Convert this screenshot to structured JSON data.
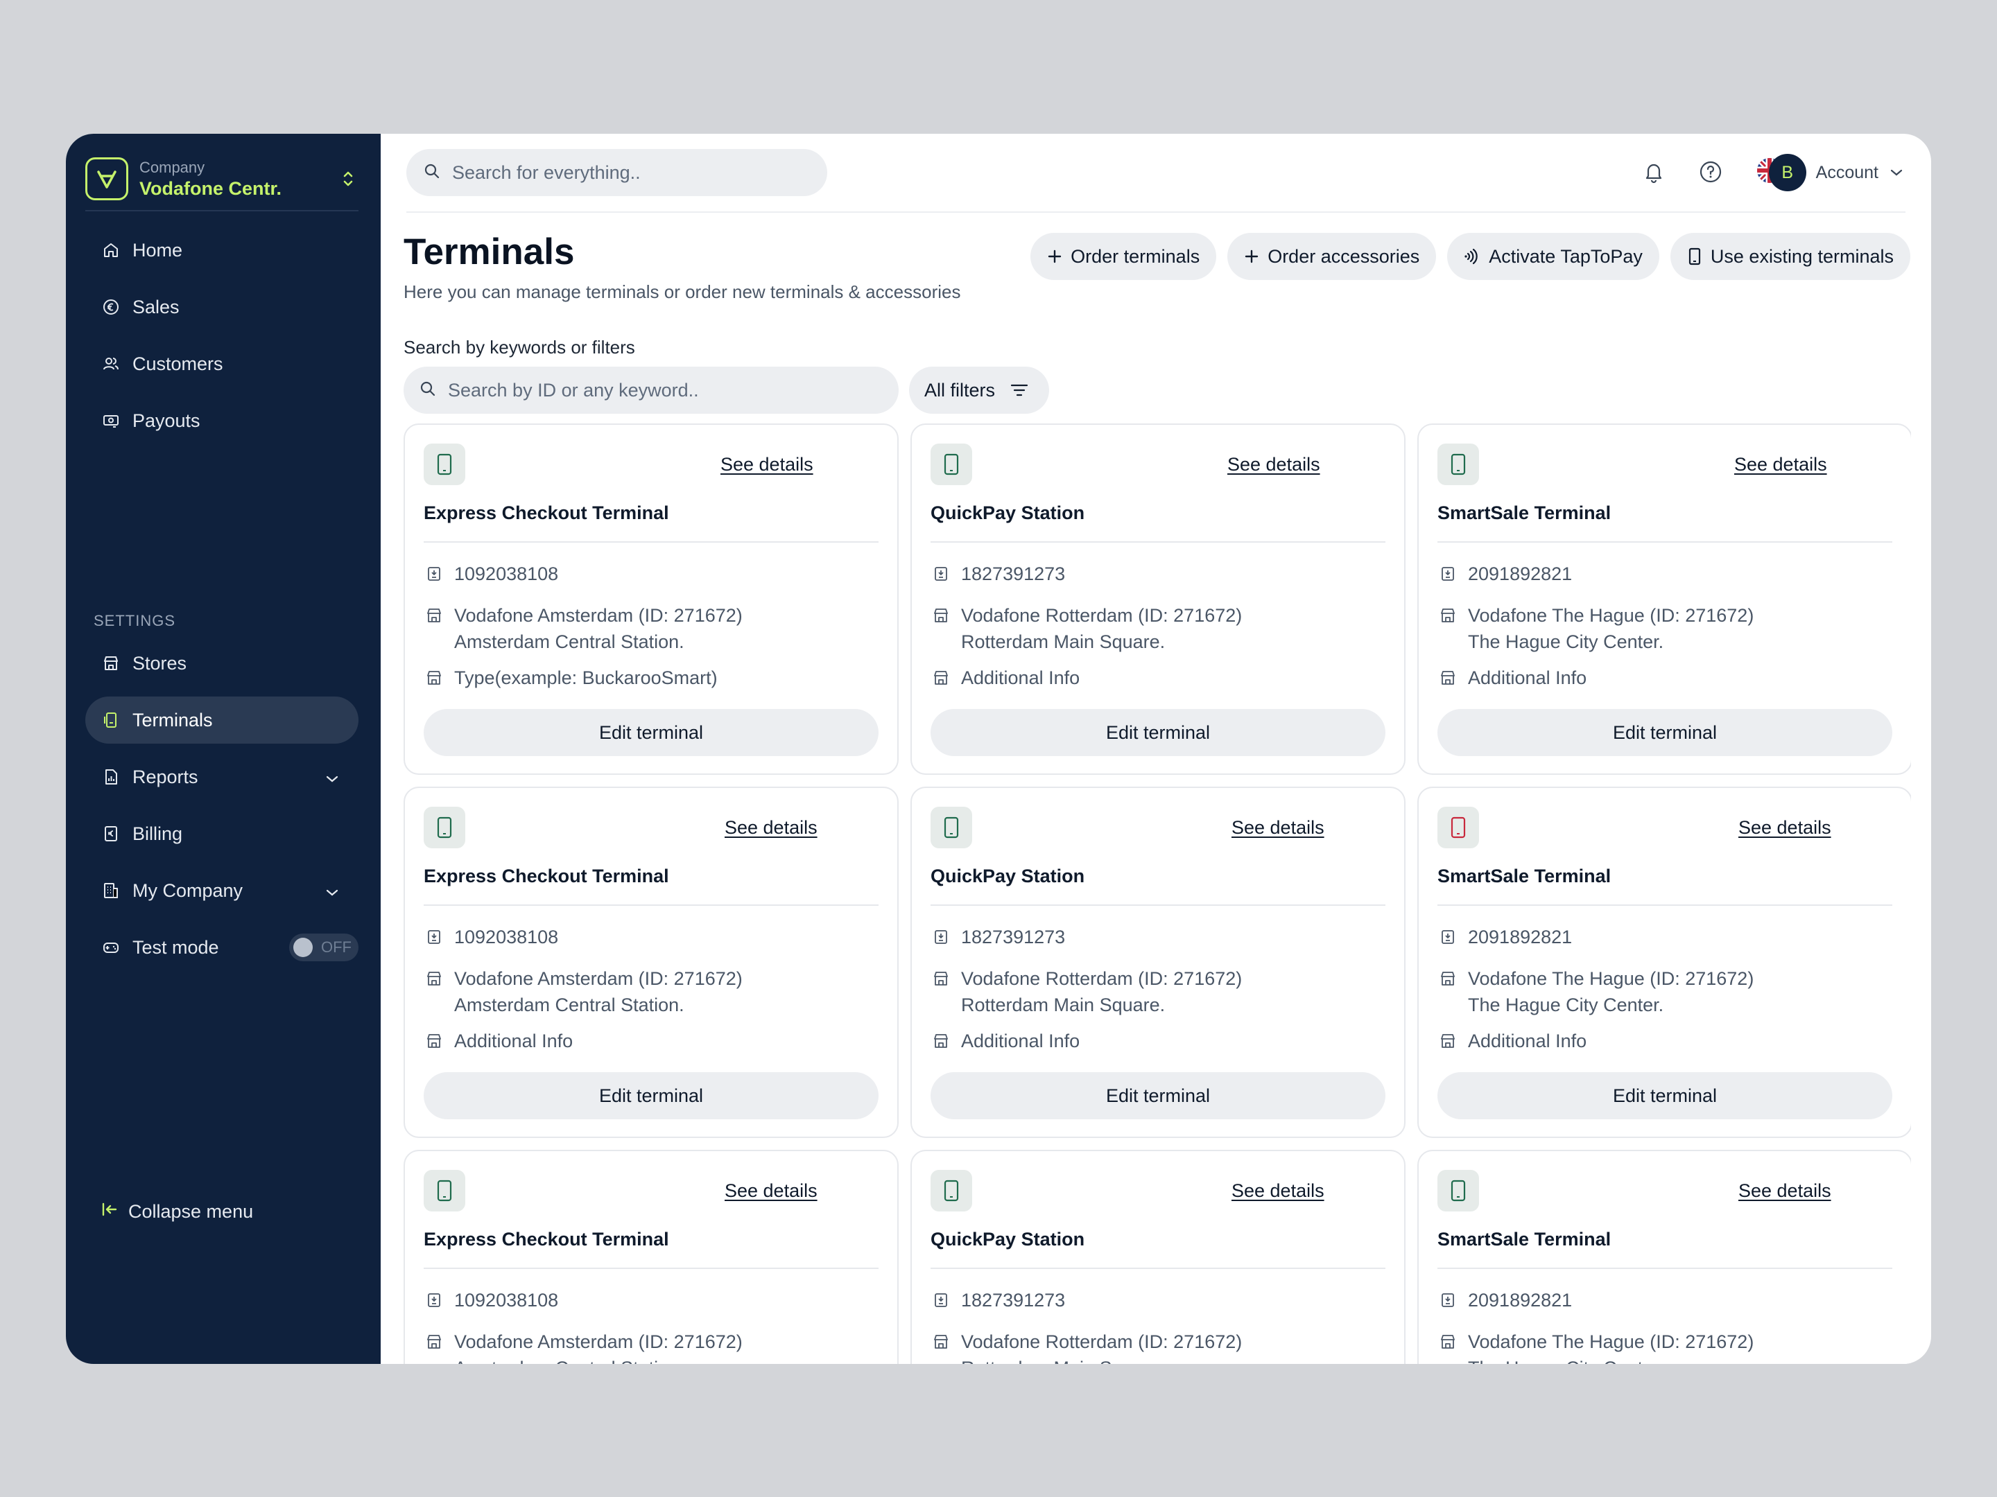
{
  "sidebar": {
    "company_label": "Company",
    "company_name": "Vodafone Centr.",
    "nav": [
      {
        "label": "Home",
        "icon": "home-icon"
      },
      {
        "label": "Sales",
        "icon": "euro-icon"
      },
      {
        "label": "Customers",
        "icon": "users-icon"
      },
      {
        "label": "Payouts",
        "icon": "payout-icon"
      }
    ],
    "settings_label": "SETTINGS",
    "settings": [
      {
        "label": "Stores",
        "icon": "store-icon"
      },
      {
        "label": "Terminals",
        "icon": "terminal-icon",
        "active": true
      },
      {
        "label": "Reports",
        "icon": "report-icon",
        "expandable": true
      },
      {
        "label": "Billing",
        "icon": "billing-icon"
      },
      {
        "label": "My Company",
        "icon": "company-icon",
        "expandable": true
      }
    ],
    "test_mode_label": "Test mode",
    "test_mode_state": "OFF",
    "collapse_label": "Collapse menu"
  },
  "topbar": {
    "search_placeholder": "Search for everything..",
    "account_initial": "B",
    "account_label": "Account"
  },
  "page": {
    "title": "Terminals",
    "subtitle": "Here you can manage terminals or order new terminals & accessories",
    "actions": [
      {
        "label": "Order terminals",
        "icon": "plus-icon"
      },
      {
        "label": "Order accessories",
        "icon": "plus-icon"
      },
      {
        "label": "Activate TapToPay",
        "icon": "contactless-icon"
      },
      {
        "label": "Use existing terminals",
        "icon": "device-icon"
      }
    ],
    "filter_label": "Search by keywords or filters",
    "keyword_placeholder": "Search by ID or any keyword..",
    "all_filters_label": "All filters"
  },
  "cards": [
    {
      "title": "Express Checkout Terminal",
      "id": "1092038108",
      "store": "Vodafone Amsterdam (ID: 271672)",
      "address": "Amsterdam Central Station.",
      "info": "Type(example: BuckarooSmart)",
      "status_color": "#1f6b4d"
    },
    {
      "title": "QuickPay Station",
      "id": "1827391273",
      "store": "Vodafone Rotterdam (ID: 271672)",
      "address": "Rotterdam Main Square.",
      "info": "Additional Info",
      "status_color": "#1f6b4d"
    },
    {
      "title": "SmartSale Terminal",
      "id": "2091892821",
      "store": "Vodafone The Hague (ID: 271672)",
      "address": "The Hague City Center.",
      "info": "Additional Info",
      "status_color": "#1f6b4d"
    },
    {
      "title": "Express Checkout Terminal",
      "id": "1092038108",
      "store": "Vodafone Amsterdam (ID: 271672)",
      "address": "Amsterdam Central Station.",
      "info": "Additional Info",
      "status_color": "#1f6b4d"
    },
    {
      "title": "QuickPay Station",
      "id": "1827391273",
      "store": "Vodafone Rotterdam (ID: 271672)",
      "address": "Rotterdam Main Square.",
      "info": "Additional Info",
      "status_color": "#1f6b4d"
    },
    {
      "title": "SmartSale Terminal",
      "id": "2091892821",
      "store": "Vodafone The Hague (ID: 271672)",
      "address": "The Hague City Center.",
      "info": "Additional Info",
      "status_color": "#c8283c"
    },
    {
      "title": "Express Checkout Terminal",
      "id": "1092038108",
      "store": "Vodafone Amsterdam (ID: 271672)",
      "address": "Amsterdam Central Station.",
      "info": "",
      "status_color": "#1f6b4d"
    },
    {
      "title": "QuickPay Station",
      "id": "1827391273",
      "store": "Vodafone Rotterdam (ID: 271672)",
      "address": "Rotterdam Main Square.",
      "info": "",
      "status_color": "#1f6b4d"
    },
    {
      "title": "SmartSale Terminal",
      "id": "2091892821",
      "store": "Vodafone The Hague (ID: 271672)",
      "address": "The Hague City Center.",
      "info": "",
      "status_color": "#1f6b4d"
    }
  ],
  "card_labels": {
    "see_details": "See details",
    "edit": "Edit terminal"
  },
  "colors": {
    "sidebar_bg": "#0f213d",
    "accent": "#c5f26b",
    "active_item": "#2a3a53",
    "surface": "#eceef1"
  }
}
